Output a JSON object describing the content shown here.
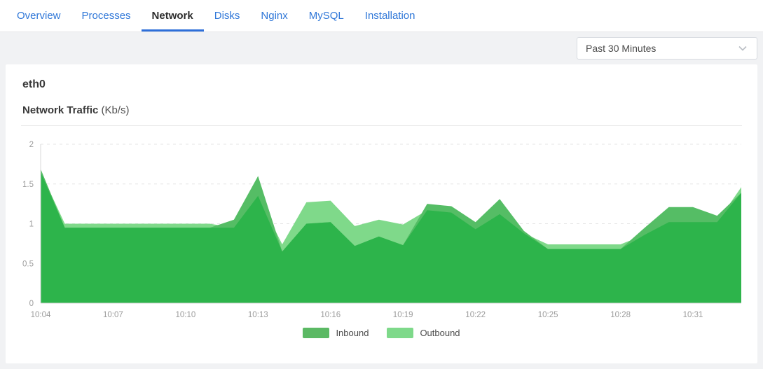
{
  "nav": {
    "tabs": [
      {
        "label": "Overview",
        "active": false
      },
      {
        "label": "Processes",
        "active": false
      },
      {
        "label": "Network",
        "active": true
      },
      {
        "label": "Disks",
        "active": false
      },
      {
        "label": "Nginx",
        "active": false
      },
      {
        "label": "MySQL",
        "active": false
      },
      {
        "label": "Installation",
        "active": false
      }
    ],
    "link_color": "#2f77d8",
    "active_color": "#2d2d2d",
    "active_underline_color": "#2e6fd9"
  },
  "toolbar": {
    "time_range": {
      "value": "Past 30 Minutes"
    }
  },
  "card": {
    "title": "eth0",
    "chart_title": "Network Traffic",
    "chart_unit": "(Kb/s)"
  },
  "legend": [
    {
      "name": "Inbound",
      "color": "#5bb964"
    },
    {
      "name": "Outbound",
      "color": "#7ed98a"
    }
  ],
  "chart_data": {
    "type": "area",
    "title": "Network Traffic (Kb/s)",
    "xlabel": "",
    "ylabel": "Kb/s",
    "ylim": [
      0,
      2
    ],
    "yticks": [
      0,
      0.5,
      1,
      1.5,
      2
    ],
    "grid": "dashed-horizontal",
    "legend_position": "bottom",
    "x": [
      "10:04",
      "10:05",
      "10:06",
      "10:07",
      "10:08",
      "10:09",
      "10:10",
      "10:11",
      "10:12",
      "10:13",
      "10:14",
      "10:15",
      "10:16",
      "10:17",
      "10:18",
      "10:19",
      "10:20",
      "10:21",
      "10:22",
      "10:23",
      "10:24",
      "10:25",
      "10:26",
      "10:27",
      "10:28",
      "10:29",
      "10:30",
      "10:31",
      "10:32",
      "10:33"
    ],
    "xtick_labels": [
      "10:04",
      "10:07",
      "10:10",
      "10:13",
      "10:16",
      "10:19",
      "10:22",
      "10:25",
      "10:28",
      "10:31"
    ],
    "series": [
      {
        "name": "Inbound",
        "fill_alone": "#55bd65",
        "values": [
          1.69,
          0.95,
          0.95,
          0.95,
          0.95,
          0.95,
          0.95,
          0.95,
          1.05,
          1.6,
          0.65,
          1.0,
          1.02,
          0.72,
          0.84,
          0.73,
          1.25,
          1.22,
          1.02,
          1.31,
          0.91,
          0.68,
          0.68,
          0.68,
          0.68,
          0.95,
          1.21,
          1.21,
          1.1,
          1.39
        ]
      },
      {
        "name": "Outbound",
        "fill_alone": "#7fd98a",
        "values": [
          1.65,
          1.0,
          1.0,
          1.0,
          1.0,
          1.0,
          1.0,
          1.0,
          0.95,
          1.35,
          0.74,
          1.27,
          1.29,
          0.97,
          1.05,
          0.99,
          1.17,
          1.14,
          0.93,
          1.12,
          0.88,
          0.74,
          0.74,
          0.74,
          0.74,
          0.86,
          1.02,
          1.02,
          1.02,
          1.46
        ]
      }
    ],
    "overlap_fill": "#2db44b",
    "axis_color": "#d9d9d9",
    "gridline_color": "#e4e4e4",
    "tick_label_color": "#9b9b9b"
  }
}
